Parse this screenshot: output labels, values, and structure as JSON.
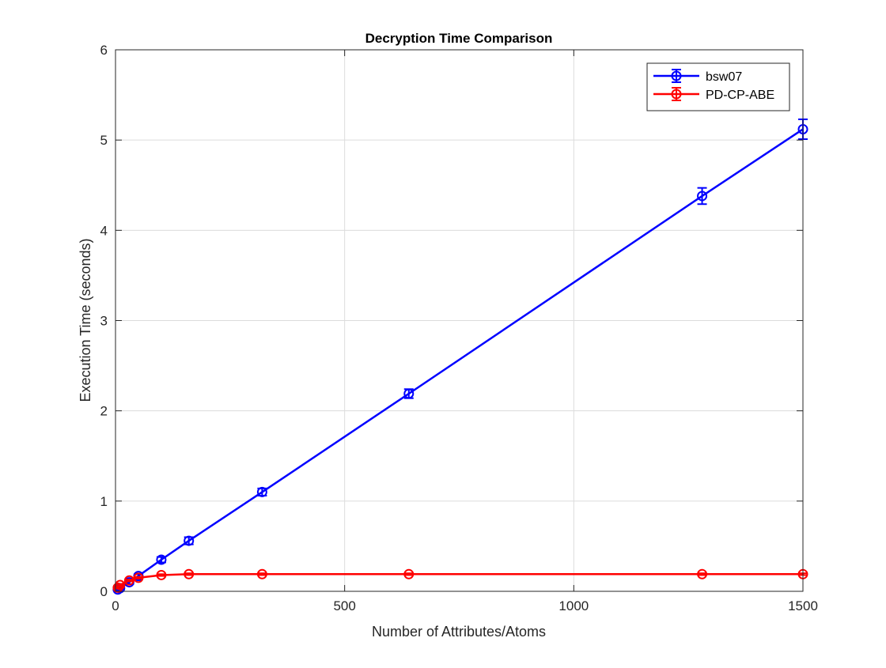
{
  "chart_data": {
    "type": "line",
    "title": "Decryption Time Comparison",
    "xlabel": "Number of Attributes/Atoms",
    "ylabel": "Execution Time (seconds)",
    "xlim": [
      0,
      1500
    ],
    "ylim": [
      0,
      6
    ],
    "xticks": [
      0,
      500,
      1000,
      1500
    ],
    "yticks": [
      0,
      1,
      2,
      3,
      4,
      5,
      6
    ],
    "grid": true,
    "legend_position": "top-right",
    "series": [
      {
        "name": "bsw07",
        "color": "#0000ff",
        "x": [
          5,
          10,
          30,
          50,
          100,
          160,
          320,
          640,
          1280,
          1500
        ],
        "y": [
          0.02,
          0.035,
          0.1,
          0.17,
          0.35,
          0.56,
          1.1,
          2.19,
          4.38,
          5.12
        ],
        "err": [
          0.01,
          0.01,
          0.02,
          0.02,
          0.03,
          0.04,
          0.04,
          0.05,
          0.09,
          0.11
        ]
      },
      {
        "name": "PD-CP-ABE",
        "color": "#ff0000",
        "x": [
          5,
          10,
          30,
          50,
          100,
          160,
          320,
          640,
          1280,
          1500
        ],
        "y": [
          0.04,
          0.07,
          0.12,
          0.15,
          0.18,
          0.19,
          0.19,
          0.19,
          0.19,
          0.19
        ],
        "err": [
          0.01,
          0.01,
          0.01,
          0.01,
          0.01,
          0.01,
          0.01,
          0.01,
          0.01,
          0.01
        ]
      }
    ]
  }
}
